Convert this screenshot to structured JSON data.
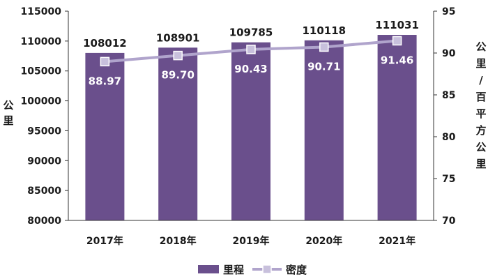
{
  "chart_data": {
    "type": "bar",
    "categories": [
      "2017年",
      "2018年",
      "2019年",
      "2020年",
      "2021年"
    ],
    "series": [
      {
        "name": "里程",
        "type": "bar",
        "axis": "left",
        "values": [
          108012,
          108901,
          109785,
          110118,
          111031
        ]
      },
      {
        "name": "密度",
        "type": "line",
        "axis": "right",
        "values": [
          88.97,
          89.7,
          90.43,
          90.71,
          91.46
        ]
      }
    ],
    "data_labels": {
      "bar": [
        "108012",
        "108901",
        "109785",
        "110118",
        "111031"
      ],
      "line": [
        "88.97",
        "89.70",
        "90.43",
        "90.71",
        "91.46"
      ]
    },
    "y_left": {
      "label": "公里",
      "ylim": [
        80000,
        115000
      ],
      "ticks": [
        "80000",
        "85000",
        "90000",
        "95000",
        "100000",
        "105000",
        "110000",
        "115000"
      ]
    },
    "y_right": {
      "label": "公里/百平方公里",
      "ylim": [
        70,
        95
      ],
      "ticks": [
        "70",
        "75",
        "80",
        "85",
        "90",
        "95"
      ]
    },
    "grid": false,
    "legend": "bottom-center",
    "colors": {
      "bar": "#6a4f8c",
      "line": "#b0a4cc",
      "marker_fill": "#c8c0dc",
      "marker_edge": "#ffffff"
    }
  }
}
